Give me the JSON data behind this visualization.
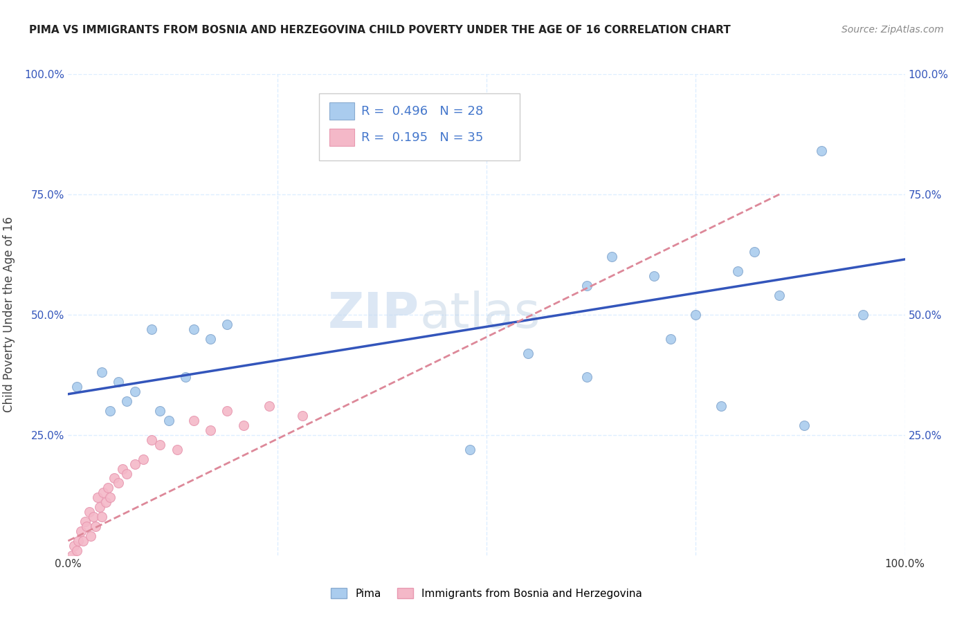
{
  "title": "PIMA VS IMMIGRANTS FROM BOSNIA AND HERZEGOVINA CHILD POVERTY UNDER THE AGE OF 16 CORRELATION CHART",
  "source": "Source: ZipAtlas.com",
  "ylabel": "Child Poverty Under the Age of 16",
  "xlim": [
    0,
    1.0
  ],
  "ylim": [
    0,
    1.0
  ],
  "background_color": "#ffffff",
  "watermark": "ZIPatlas",
  "legend_r_color": "#4477cc",
  "pima_scatter_color": "#aaccee",
  "pima_scatter_edge": "#88aad0",
  "bosnia_scatter_color": "#f4b8c8",
  "bosnia_scatter_edge": "#e898b0",
  "pima_line_color": "#3355bb",
  "bosnia_line_color": "#dd8899",
  "grid_color": "#ddeeff",
  "pima_points_x": [
    0.01,
    0.04,
    0.05,
    0.06,
    0.07,
    0.08,
    0.1,
    0.11,
    0.12,
    0.14,
    0.15,
    0.17,
    0.19,
    0.48,
    0.55,
    0.62,
    0.65,
    0.7,
    0.72,
    0.75,
    0.78,
    0.8,
    0.82,
    0.85,
    0.88,
    0.9,
    0.95,
    0.62
  ],
  "pima_points_y": [
    0.35,
    0.38,
    0.3,
    0.36,
    0.32,
    0.34,
    0.47,
    0.3,
    0.28,
    0.37,
    0.47,
    0.45,
    0.48,
    0.22,
    0.42,
    0.56,
    0.62,
    0.58,
    0.45,
    0.5,
    0.31,
    0.59,
    0.63,
    0.54,
    0.27,
    0.84,
    0.5,
    0.37
  ],
  "bosnia_points_x": [
    0.001,
    0.005,
    0.007,
    0.01,
    0.012,
    0.015,
    0.018,
    0.02,
    0.022,
    0.025,
    0.027,
    0.03,
    0.033,
    0.035,
    0.038,
    0.04,
    0.042,
    0.045,
    0.048,
    0.05,
    0.055,
    0.06,
    0.065,
    0.07,
    0.08,
    0.09,
    0.1,
    0.11,
    0.13,
    0.15,
    0.17,
    0.19,
    0.21,
    0.24,
    0.28
  ],
  "bosnia_points_y": [
    -0.02,
    0.0,
    0.02,
    0.01,
    0.03,
    0.05,
    0.03,
    0.07,
    0.06,
    0.09,
    0.04,
    0.08,
    0.06,
    0.12,
    0.1,
    0.08,
    0.13,
    0.11,
    0.14,
    0.12,
    0.16,
    0.15,
    0.18,
    0.17,
    0.19,
    0.2,
    0.24,
    0.23,
    0.22,
    0.28,
    0.26,
    0.3,
    0.27,
    0.31,
    0.29
  ],
  "pima_r": 0.496,
  "pima_n": 28,
  "bosnia_r": 0.195,
  "bosnia_n": 35,
  "marker_size": 100,
  "pima_line_x0": 0.0,
  "pima_line_x1": 1.0,
  "pima_line_y0": 0.335,
  "pima_line_y1": 0.615,
  "bosnia_line_x0": 0.0,
  "bosnia_line_x1": 0.85,
  "bosnia_line_y0": 0.03,
  "bosnia_line_y1": 0.75
}
